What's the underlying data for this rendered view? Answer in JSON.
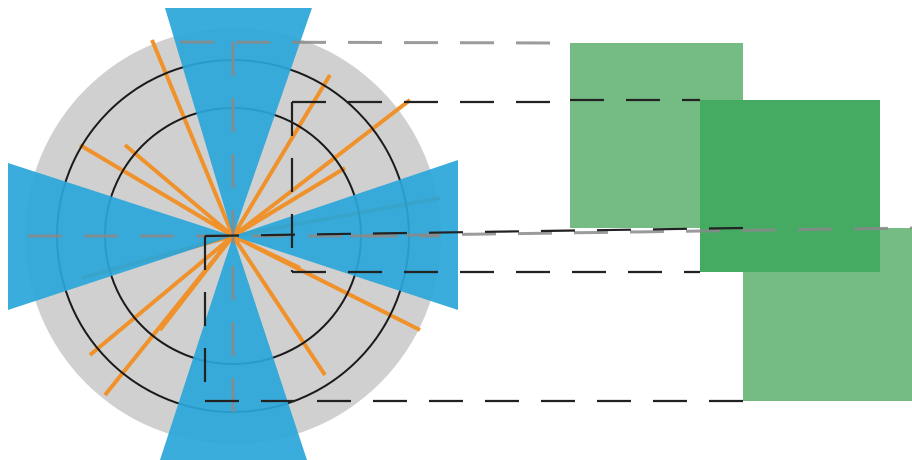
{
  "diagram": {
    "colors": {
      "disc": "#d0d0d0",
      "ring": "#1a1a1a",
      "beam": "#29a6d9",
      "ray": "#f0922b",
      "projection_light": "#74bb84",
      "projection_dark": "#46ab62",
      "dash_dark": "#222222",
      "dash_light": "#8a8a8a"
    },
    "ray_count": 14,
    "beam_count": 4,
    "projection_count": 3
  }
}
